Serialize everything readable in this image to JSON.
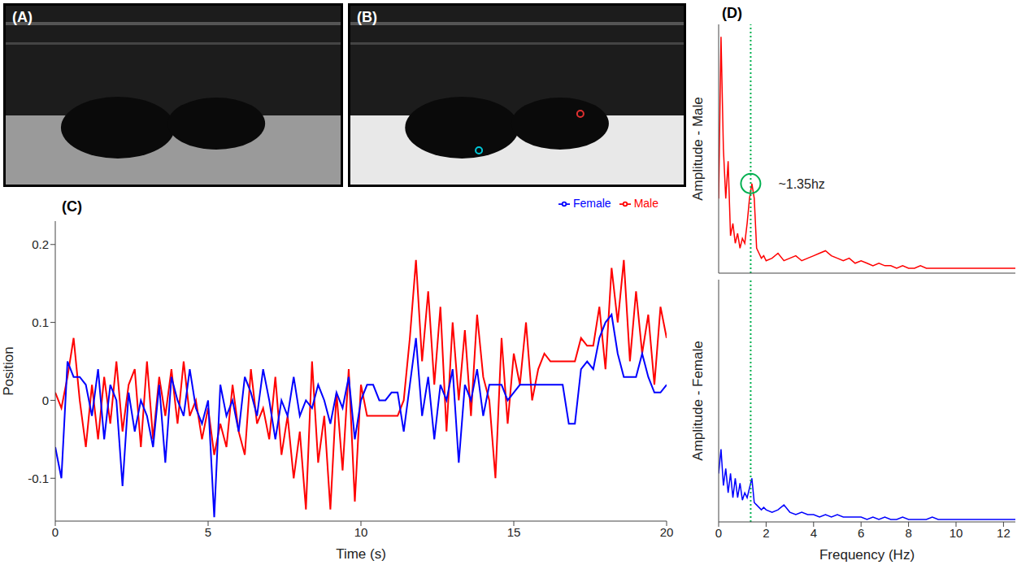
{
  "chart_data": [
    {
      "type": "image",
      "title": "(A)"
    },
    {
      "type": "image",
      "title": "(B)"
    },
    {
      "type": "line",
      "title": "(C)",
      "xlabel": "Time (s)",
      "ylabel": "Position",
      "x": [
        0,
        0.2,
        0.4,
        0.6,
        0.8,
        1,
        1.2,
        1.4,
        1.6,
        1.8,
        2,
        2.2,
        2.4,
        2.6,
        2.8,
        3,
        3.2,
        3.4,
        3.6,
        3.8,
        4,
        4.2,
        4.4,
        4.6,
        4.8,
        5,
        5.2,
        5.4,
        5.6,
        5.8,
        6,
        6.2,
        6.4,
        6.6,
        6.8,
        7,
        7.2,
        7.4,
        7.6,
        7.8,
        8,
        8.2,
        8.4,
        8.6,
        8.8,
        9,
        9.2,
        9.4,
        9.6,
        9.8,
        10,
        10.2,
        10.4,
        10.6,
        10.8,
        11,
        11.2,
        11.4,
        11.6,
        11.8,
        12,
        12.2,
        12.4,
        12.6,
        12.8,
        13,
        13.2,
        13.4,
        13.6,
        13.8,
        14,
        14.2,
        14.4,
        14.6,
        14.8,
        15,
        15.2,
        15.4,
        15.6,
        15.8,
        16,
        16.2,
        16.4,
        16.6,
        16.8,
        17,
        17.2,
        17.4,
        17.6,
        17.8,
        18,
        18.2,
        18.4,
        18.6,
        18.8,
        19,
        19.2,
        19.4,
        19.6,
        19.8,
        20
      ],
      "series": [
        {
          "name": "Male",
          "color": "#ff0000",
          "values": [
            0.01,
            -0.01,
            0.03,
            0.08,
            0,
            -0.06,
            0.02,
            -0.05,
            0.03,
            -0.03,
            0.05,
            -0.04,
            0.02,
            0.04,
            -0.06,
            0.05,
            -0.05,
            0.03,
            -0.02,
            0.04,
            -0.03,
            0.05,
            -0.02,
            0,
            -0.05,
            -0.01,
            -0.07,
            -0.03,
            -0.06,
            0.02,
            -0.04,
            -0.07,
            0.04,
            -0.03,
            -0.01,
            -0.05,
            0.03,
            -0.07,
            -0.02,
            -0.1,
            -0.04,
            -0.14,
            0.05,
            -0.08,
            -0.02,
            -0.14,
            0.01,
            -0.09,
            0.04,
            -0.13,
            0.02,
            -0.02,
            -0.02,
            -0.02,
            -0.02,
            -0.02,
            -0.02,
            0,
            0.08,
            0.18,
            0.05,
            0.14,
            0.02,
            0.12,
            -0.04,
            0.1,
            0,
            0.09,
            -0.02,
            0.11,
            0.03,
            0,
            -0.1,
            0.08,
            -0.03,
            0.06,
            0.02,
            0.1,
            0,
            0.04,
            0.06,
            0.05,
            0.05,
            0.05,
            0.05,
            0.05,
            0.08,
            0.07,
            0.07,
            0.12,
            0.04,
            0.17,
            0.1,
            0.18,
            0.05,
            0.14,
            0.06,
            0.11,
            0.02,
            0.12,
            0.08
          ]
        },
        {
          "name": "Female",
          "color": "#0000ff",
          "values": [
            -0.06,
            -0.1,
            0.05,
            0.03,
            0.03,
            0.02,
            -0.02,
            0.04,
            -0.05,
            0.02,
            0,
            -0.11,
            0.01,
            -0.04,
            0,
            -0.02,
            -0.06,
            0.02,
            -0.08,
            0.03,
            0,
            -0.02,
            0.04,
            -0.01,
            -0.03,
            0,
            -0.15,
            0.02,
            -0.02,
            0,
            -0.04,
            0.03,
            0.01,
            -0.02,
            0.04,
            0,
            -0.05,
            0,
            -0.02,
            0.03,
            -0.02,
            0,
            -0.01,
            0.02,
            0,
            -0.03,
            0.01,
            -0.01,
            0.03,
            -0.05,
            0,
            0.02,
            0.02,
            0,
            0,
            0.01,
            0.01,
            -0.04,
            0.02,
            0.08,
            -0.02,
            0.03,
            -0.05,
            0.02,
            0,
            0.04,
            -0.08,
            0.02,
            0,
            0.04,
            -0.02,
            0.02,
            0.02,
            0.02,
            0,
            0.01,
            0.02,
            0.02,
            0.02,
            0.02,
            0.02,
            0.02,
            0.02,
            0.02,
            -0.03,
            -0.03,
            0.04,
            0.05,
            0.04,
            0.08,
            0.1,
            0.11,
            0.06,
            0.03,
            0.03,
            0.03,
            0.06,
            0.03,
            0.01,
            0.01,
            0.02
          ]
        }
      ],
      "xlim": [
        0,
        20
      ],
      "xticks": [
        0,
        5,
        10,
        15,
        20
      ],
      "ylim": [
        -0.155,
        0.23
      ],
      "yticks": [
        -0.1,
        0,
        0.1,
        0.2
      ],
      "legend": "top-right",
      "grid": false
    },
    {
      "type": "line",
      "title": "(D)",
      "ylabel": "Amplitude - Male",
      "x": [
        0,
        0.1,
        0.2,
        0.3,
        0.4,
        0.5,
        0.6,
        0.7,
        0.8,
        0.9,
        1,
        1.1,
        1.2,
        1.3,
        1.4,
        1.5,
        1.6,
        1.7,
        1.8,
        1.9,
        2,
        2.25,
        2.5,
        2.75,
        3,
        3.25,
        3.5,
        3.75,
        4,
        4.25,
        4.5,
        4.75,
        5,
        5.25,
        5.5,
        5.75,
        6,
        6.25,
        6.5,
        6.75,
        7,
        7.25,
        7.5,
        7.75,
        8,
        8.25,
        8.5,
        8.75,
        9,
        9.25,
        9.5,
        9.75,
        10,
        10.25,
        10.5,
        10.75,
        11,
        11.25,
        11.5,
        11.75,
        12,
        12.25,
        12.5
      ],
      "series": [
        {
          "color": "#ff0000",
          "values": [
            0.3,
            0.95,
            0.5,
            0.3,
            0.45,
            0.15,
            0.2,
            0.12,
            0.16,
            0.1,
            0.14,
            0.12,
            0.2,
            0.3,
            0.36,
            0.3,
            0.1,
            0.08,
            0.06,
            0.07,
            0.05,
            0.06,
            0.08,
            0.05,
            0.06,
            0.07,
            0.05,
            0.06,
            0.07,
            0.08,
            0.09,
            0.07,
            0.06,
            0.05,
            0.06,
            0.04,
            0.05,
            0.04,
            0.03,
            0.04,
            0.03,
            0.03,
            0.02,
            0.03,
            0.02,
            0.02,
            0.03,
            0.02,
            0.02,
            0.02,
            0.02,
            0.02,
            0.02,
            0.02,
            0.02,
            0.02,
            0.02,
            0.02,
            0.02,
            0.02,
            0.02,
            0.02,
            0.02
          ]
        }
      ],
      "xlim": [
        0,
        12.5
      ],
      "ylim": [
        0,
        1
      ],
      "vline": 1.35,
      "annotation": "~1.35hz",
      "tick_labels": false,
      "grid": false
    },
    {
      "type": "line",
      "xlabel": "Frequency (Hz)",
      "ylabel": "Amplitude - Female",
      "x": [
        0,
        0.1,
        0.2,
        0.3,
        0.4,
        0.5,
        0.6,
        0.7,
        0.8,
        0.9,
        1,
        1.1,
        1.2,
        1.3,
        1.4,
        1.5,
        1.6,
        1.7,
        1.8,
        1.9,
        2,
        2.25,
        2.5,
        2.75,
        3,
        3.25,
        3.5,
        3.75,
        4,
        4.25,
        4.5,
        4.75,
        5,
        5.25,
        5.5,
        5.75,
        6,
        6.25,
        6.5,
        6.75,
        7,
        7.25,
        7.5,
        7.75,
        8,
        8.25,
        8.5,
        8.75,
        9,
        9.25,
        9.5,
        9.75,
        10,
        10.25,
        10.5,
        10.75,
        11,
        11.25,
        11.5,
        11.75,
        12,
        12.25,
        12.5
      ],
      "series": [
        {
          "color": "#0000ff",
          "values": [
            0.2,
            0.3,
            0.15,
            0.22,
            0.12,
            0.2,
            0.1,
            0.18,
            0.1,
            0.16,
            0.09,
            0.12,
            0.1,
            0.14,
            0.18,
            0.08,
            0.07,
            0.06,
            0.05,
            0.06,
            0.05,
            0.04,
            0.05,
            0.07,
            0.04,
            0.03,
            0.04,
            0.03,
            0.03,
            0.02,
            0.03,
            0.02,
            0.03,
            0.02,
            0.02,
            0.02,
            0.02,
            0.01,
            0.02,
            0.01,
            0.02,
            0.01,
            0.01,
            0.02,
            0.01,
            0.01,
            0.01,
            0.01,
            0.02,
            0.01,
            0.01,
            0.01,
            0.01,
            0.01,
            0.01,
            0.01,
            0.01,
            0.01,
            0.01,
            0.01,
            0.01,
            0.01,
            0.01
          ]
        }
      ],
      "xlim": [
        0,
        12.5
      ],
      "xticks": [
        0,
        2,
        4,
        6,
        8,
        10,
        12
      ],
      "ylim": [
        0,
        1
      ],
      "vline": 1.35,
      "tick_labels": "x",
      "grid": false
    }
  ]
}
